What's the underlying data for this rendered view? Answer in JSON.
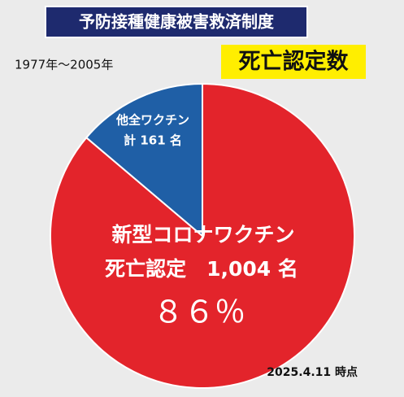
{
  "chart_data": {
    "type": "pie",
    "title": "予防接種健康被害救済制度",
    "subtitle": "死亡認定数",
    "period": "1977年〜2005年",
    "as_of": "2025.4.11 時点",
    "categories": [
      "新型コロナワクチン",
      "他全ワクチン"
    ],
    "values": [
      1004,
      161
    ],
    "value_labels": [
      "死亡認定　1,004 名",
      "計 161 名"
    ],
    "colors": [
      "#e3242b",
      "#1f5fa6"
    ],
    "annotation": "８６％"
  }
}
